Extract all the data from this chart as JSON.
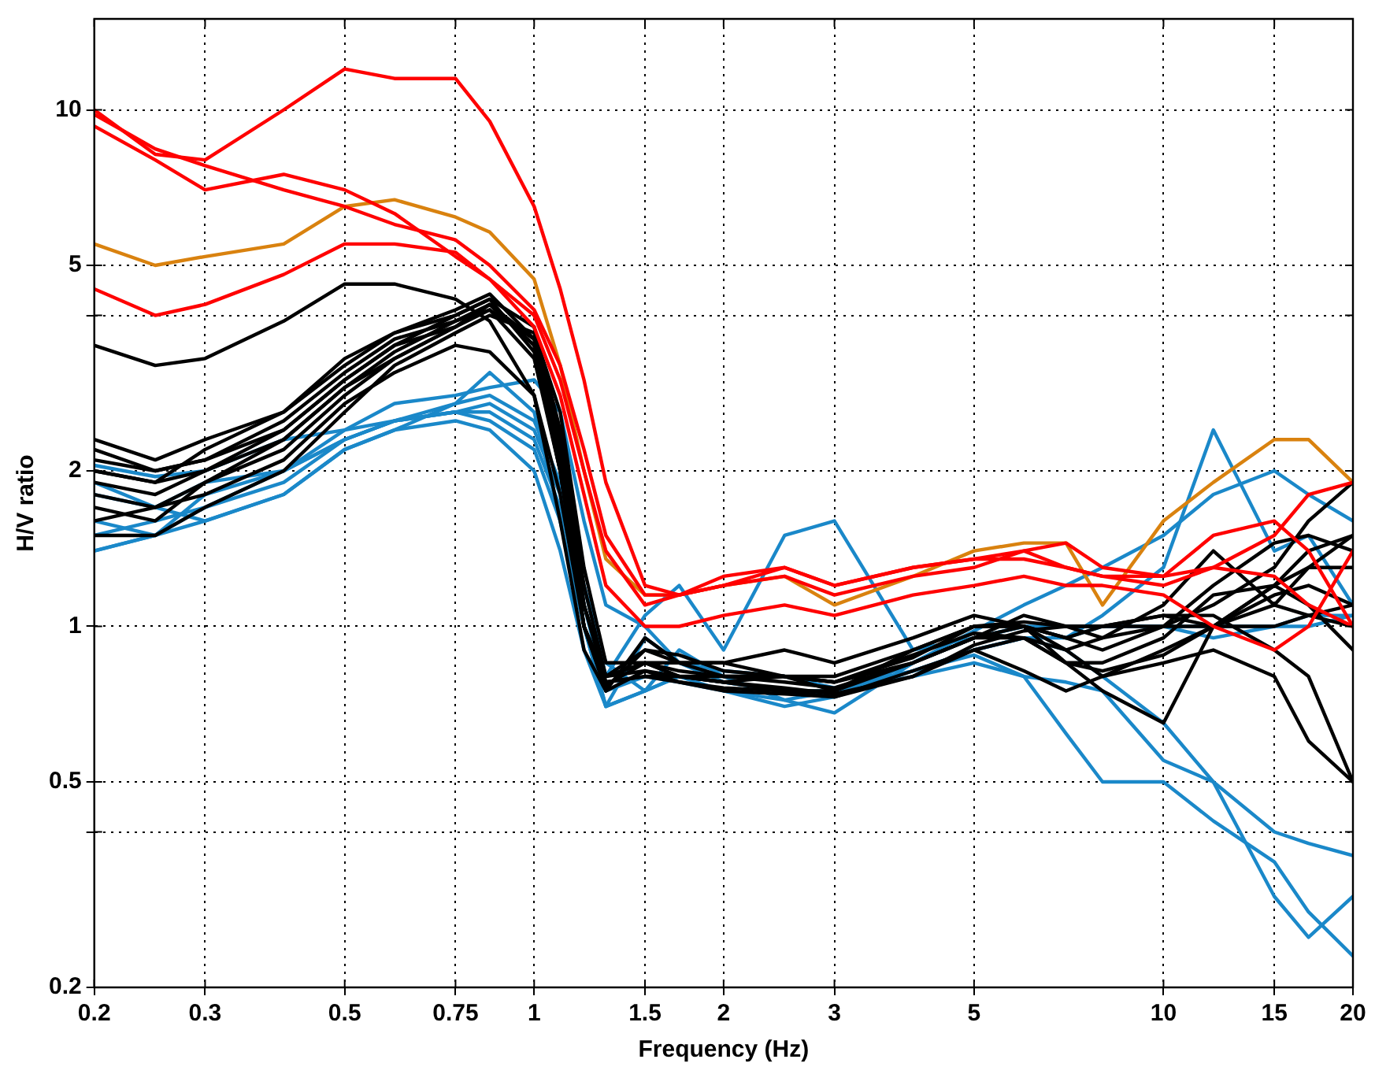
{
  "chart_data": {
    "type": "line",
    "xlabel": "Frequency (Hz)",
    "ylabel": "H/V ratio",
    "log": "xy",
    "grid": true,
    "legend": false,
    "marker": "none",
    "line_style": "solid",
    "x": [
      0.2,
      0.25,
      0.3,
      0.4,
      0.5,
      0.6,
      0.75,
      0.85,
      1,
      1.1,
      1.2,
      1.3,
      1.5,
      1.7,
      2,
      2.5,
      3,
      4,
      5,
      6,
      7,
      8,
      10,
      12,
      15,
      17,
      20
    ],
    "xlim": [
      0.2,
      20
    ],
    "xticks": [
      0.2,
      0.3,
      0.5,
      0.75,
      1,
      1.5,
      2,
      3,
      5,
      10,
      15,
      20
    ],
    "ylim": [
      0.2,
      15
    ],
    "yticks": [
      0.2,
      {
        "value": 0.4,
        "label": null
      },
      0.5,
      1,
      2,
      {
        "value": 4,
        "label": null
      },
      5,
      10
    ],
    "series": [
      {
        "color": "#ff0000",
        "values": [
          10,
          8.2,
          8.0,
          10,
          12,
          11.5,
          11.5,
          9.5,
          6.5,
          4.5,
          3,
          1.9,
          1.2,
          1.15,
          1.2,
          1.3,
          1.2,
          1.3,
          1.35,
          1.4,
          1.45,
          1.3,
          1.25,
          1.3,
          1.25,
          1.1,
          1.0
        ]
      },
      {
        "color": "#ff0000",
        "values": [
          9.3,
          8.0,
          7.0,
          7.5,
          7.0,
          6.3,
          5.2,
          4.7,
          4.0,
          3.0,
          2.0,
          1.4,
          1.1,
          1.15,
          1.25,
          1.3,
          1.2,
          1.3,
          1.35,
          1.35,
          1.3,
          1.25,
          1.25,
          1.5,
          1.6,
          1.4,
          1.0
        ]
      },
      {
        "color": "#ff0000",
        "values": [
          4.5,
          4.0,
          4.2,
          4.8,
          5.5,
          5.5,
          5.3,
          4.7,
          3.8,
          2.8,
          1.8,
          1.2,
          1.0,
          1.0,
          1.05,
          1.1,
          1.05,
          1.15,
          1.2,
          1.25,
          1.2,
          1.2,
          1.15,
          1.0,
          0.9,
          1.0,
          1.4
        ]
      },
      {
        "color": "#ff0000",
        "values": [
          9.8,
          8.4,
          7.8,
          7.0,
          6.5,
          6.0,
          5.6,
          5.0,
          4.1,
          3.2,
          2.2,
          1.5,
          1.15,
          1.15,
          1.2,
          1.25,
          1.15,
          1.25,
          1.3,
          1.4,
          1.3,
          1.25,
          1.2,
          1.3,
          1.5,
          1.8,
          1.9
        ]
      },
      {
        "color": "#d9820f",
        "values": [
          5.5,
          5.0,
          5.2,
          5.5,
          6.5,
          6.7,
          6.2,
          5.8,
          4.7,
          3.2,
          2.0,
          1.35,
          1.15,
          1.15,
          1.2,
          1.25,
          1.1,
          1.25,
          1.4,
          1.45,
          1.45,
          1.1,
          1.6,
          1.9,
          2.3,
          2.3,
          1.9
        ]
      },
      {
        "color": "#000000",
        "values": [
          3.5,
          3.2,
          3.3,
          3.9,
          4.6,
          4.6,
          4.3,
          3.9,
          2.8,
          1.8,
          1.0,
          0.8,
          0.85,
          0.85,
          0.85,
          0.9,
          0.85,
          0.95,
          1.05,
          1.0,
          0.85,
          0.85,
          0.95,
          1.15,
          1.2,
          1.1,
          0.9
        ]
      },
      {
        "color": "#000000",
        "values": [
          2.2,
          2.0,
          2.1,
          2.4,
          3.0,
          3.5,
          3.8,
          4.2,
          3.5,
          2.0,
          1.0,
          0.75,
          0.95,
          0.85,
          0.8,
          0.8,
          0.75,
          0.9,
          1.0,
          1.0,
          0.9,
          0.8,
          0.85,
          0.9,
          0.8,
          0.6,
          0.5
        ]
      },
      {
        "color": "#000000",
        "values": [
          2.0,
          1.9,
          2.2,
          2.6,
          3.2,
          3.7,
          4.1,
          4.4,
          3.6,
          2.2,
          1.1,
          0.8,
          0.9,
          0.85,
          0.85,
          0.8,
          0.78,
          0.85,
          0.95,
          1.0,
          0.95,
          0.9,
          1.0,
          1.1,
          1.3,
          1.6,
          1.9
        ]
      },
      {
        "color": "#000000",
        "values": [
          1.9,
          1.8,
          2.0,
          2.4,
          3.0,
          3.5,
          4.0,
          4.3,
          3.8,
          2.4,
          1.2,
          0.8,
          0.85,
          0.8,
          0.78,
          0.75,
          0.75,
          0.85,
          0.95,
          1.05,
          1.0,
          0.95,
          1.0,
          1.2,
          1.45,
          1.5,
          1.4
        ]
      },
      {
        "color": "#000000",
        "values": [
          1.7,
          1.6,
          1.9,
          2.2,
          2.8,
          3.3,
          3.8,
          4.2,
          3.5,
          2.1,
          1.0,
          0.78,
          0.8,
          0.78,
          0.75,
          0.74,
          0.73,
          0.82,
          0.9,
          0.82,
          0.75,
          0.8,
          0.9,
          1.0,
          1.2,
          1.4,
          1.5
        ]
      },
      {
        "color": "#000000",
        "values": [
          2.1,
          2.0,
          2.1,
          2.5,
          3.1,
          3.6,
          3.9,
          4.1,
          3.3,
          2.0,
          1.0,
          0.77,
          0.85,
          0.82,
          0.8,
          0.78,
          0.76,
          0.85,
          0.95,
          0.95,
          0.85,
          0.75,
          0.65,
          1.0,
          1.2,
          1.3,
          1.3
        ]
      },
      {
        "color": "#000000",
        "values": [
          1.5,
          1.5,
          1.7,
          2.0,
          2.6,
          3.2,
          3.7,
          4.0,
          3.7,
          2.6,
          1.3,
          0.85,
          0.85,
          0.8,
          0.78,
          0.76,
          0.74,
          0.8,
          0.9,
          0.95,
          0.9,
          0.95,
          1.1,
          1.4,
          1.1,
          1.05,
          1.0
        ]
      },
      {
        "color": "#000000",
        "values": [
          2.3,
          2.1,
          2.3,
          2.6,
          3.3,
          3.7,
          4.0,
          4.3,
          3.4,
          2.0,
          1.0,
          0.76,
          0.9,
          0.88,
          0.82,
          0.8,
          0.78,
          0.88,
          0.97,
          0.95,
          0.85,
          0.82,
          0.88,
          1.0,
          1.15,
          1.2,
          1.1
        ]
      },
      {
        "color": "#000000",
        "values": [
          1.6,
          1.7,
          1.8,
          2.1,
          2.7,
          3.1,
          3.5,
          3.4,
          2.8,
          1.6,
          0.9,
          0.75,
          0.82,
          0.78,
          0.76,
          0.75,
          0.73,
          0.8,
          0.92,
          0.98,
          1.0,
          1.0,
          1.05,
          1.0,
          1.0,
          1.05,
          1.1
        ]
      },
      {
        "color": "#000000",
        "values": [
          1.8,
          1.7,
          1.9,
          2.3,
          2.9,
          3.4,
          3.9,
          4.2,
          3.6,
          2.3,
          1.1,
          0.78,
          0.8,
          0.8,
          0.8,
          0.8,
          0.8,
          0.9,
          1.0,
          1.0,
          0.95,
          1.0,
          1.05,
          1.05,
          0.9,
          0.8,
          0.5
        ]
      },
      {
        "color": "#000000",
        "values": [
          2.0,
          1.9,
          2.0,
          2.3,
          2.9,
          3.3,
          3.8,
          4.1,
          3.6,
          2.3,
          1.1,
          0.8,
          0.82,
          0.8,
          0.78,
          0.8,
          0.78,
          0.87,
          1.0,
          1.02,
          1.0,
          1.0,
          1.0,
          1.0,
          1.1,
          1.3,
          1.5
        ]
      },
      {
        "color": "#1a88c9",
        "values": [
          1.4,
          1.5,
          1.8,
          2.0,
          2.3,
          2.5,
          2.6,
          2.7,
          2.4,
          1.8,
          1.2,
          0.8,
          1.05,
          1.2,
          0.9,
          1.5,
          1.6,
          0.9,
          0.95,
          1.0,
          0.95,
          1.05,
          1.3,
          2.4,
          1.4,
          1.5,
          1.1
        ]
      },
      {
        "color": "#1a88c9",
        "values": [
          1.8,
          1.7,
          1.9,
          2.0,
          2.3,
          2.5,
          2.7,
          3.1,
          2.6,
          1.6,
          1.0,
          0.7,
          0.75,
          0.9,
          0.8,
          0.72,
          0.68,
          0.85,
          0.95,
          1.0,
          1.0,
          1.0,
          1.0,
          0.95,
          1.0,
          1.05,
          1.05
        ]
      },
      {
        "color": "#1a88c9",
        "values": [
          2.05,
          1.95,
          2.0,
          2.3,
          2.4,
          2.7,
          2.8,
          2.9,
          3.0,
          2.6,
          1.6,
          1.1,
          1.0,
          0.85,
          0.78,
          0.75,
          0.73,
          0.85,
          0.98,
          1.1,
          1.2,
          1.3,
          1.5,
          1.8,
          2.0,
          1.8,
          1.6
        ]
      },
      {
        "color": "#1a88c9",
        "values": [
          1.6,
          1.5,
          1.7,
          2.0,
          2.4,
          2.5,
          2.6,
          2.6,
          2.3,
          1.7,
          1.1,
          0.75,
          0.8,
          0.78,
          0.75,
          0.72,
          0.75,
          0.8,
          0.85,
          0.8,
          0.78,
          0.75,
          0.55,
          0.5,
          0.4,
          0.38,
          0.36
        ]
      },
      {
        "color": "#1a88c9",
        "values": [
          1.9,
          1.7,
          1.6,
          1.8,
          2.2,
          2.4,
          2.5,
          2.4,
          2.0,
          1.4,
          0.9,
          0.7,
          0.95,
          0.85,
          0.82,
          0.8,
          0.76,
          0.82,
          0.9,
          0.95,
          0.9,
          0.8,
          0.65,
          0.5,
          0.3,
          0.25,
          0.3
        ]
      },
      {
        "color": "#1a88c9",
        "values": [
          1.4,
          1.5,
          1.6,
          1.8,
          2.2,
          2.4,
          2.7,
          2.8,
          2.5,
          1.9,
          1.2,
          0.85,
          0.75,
          0.8,
          0.75,
          0.7,
          0.73,
          0.82,
          0.88,
          0.8,
          0.62,
          0.5,
          0.5,
          0.42,
          0.35,
          0.28,
          0.23
        ]
      },
      {
        "color": "#1a88c9",
        "values": [
          1.5,
          1.6,
          1.7,
          1.9,
          2.3,
          2.5,
          2.6,
          2.5,
          2.2,
          1.6,
          1.0,
          0.7,
          0.75,
          0.8,
          0.78,
          0.75,
          0.75,
          0.82,
          0.9,
          0.95,
          0.95,
          1.0,
          1.0,
          1.0,
          1.0,
          1.0,
          1.05
        ]
      }
    ]
  }
}
